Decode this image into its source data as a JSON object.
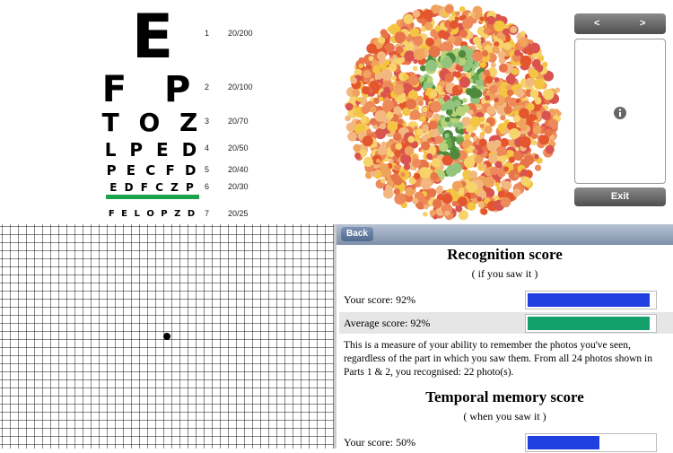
{
  "eye_chart": {
    "rows": [
      {
        "letters": "E",
        "line": "1",
        "acuity": "20/200"
      },
      {
        "letters": "F P",
        "line": "2",
        "acuity": "20/100"
      },
      {
        "letters": "T O Z",
        "line": "3",
        "acuity": "20/70"
      },
      {
        "letters": "L P E D",
        "line": "4",
        "acuity": "20/50"
      },
      {
        "letters": "P E C F D",
        "line": "5",
        "acuity": "20/40"
      },
      {
        "letters": "E D F C Z P",
        "line": "6",
        "acuity": "20/30"
      },
      {
        "letters": "F E L O P Z D",
        "line": "7",
        "acuity": "20/25"
      }
    ]
  },
  "color_plate_controls": {
    "prev": "<",
    "next": ">",
    "exit": "Exit"
  },
  "results": {
    "back": "Back",
    "sections": [
      {
        "title": "Recognition score",
        "subtitle": "( if you saw it )",
        "your_score": "Your score: 92%",
        "average_score": "Average score: 92%",
        "description": "This is a measure of your ability to remember the photos you've seen, regardless of the part in which you saw them. From all 24 photos shown in Parts 1 & 2, you recognised: 22 photo(s)."
      },
      {
        "title": "Temporal memory score",
        "subtitle": "( when you saw it )",
        "your_score": "Your score: 50%"
      }
    ]
  }
}
